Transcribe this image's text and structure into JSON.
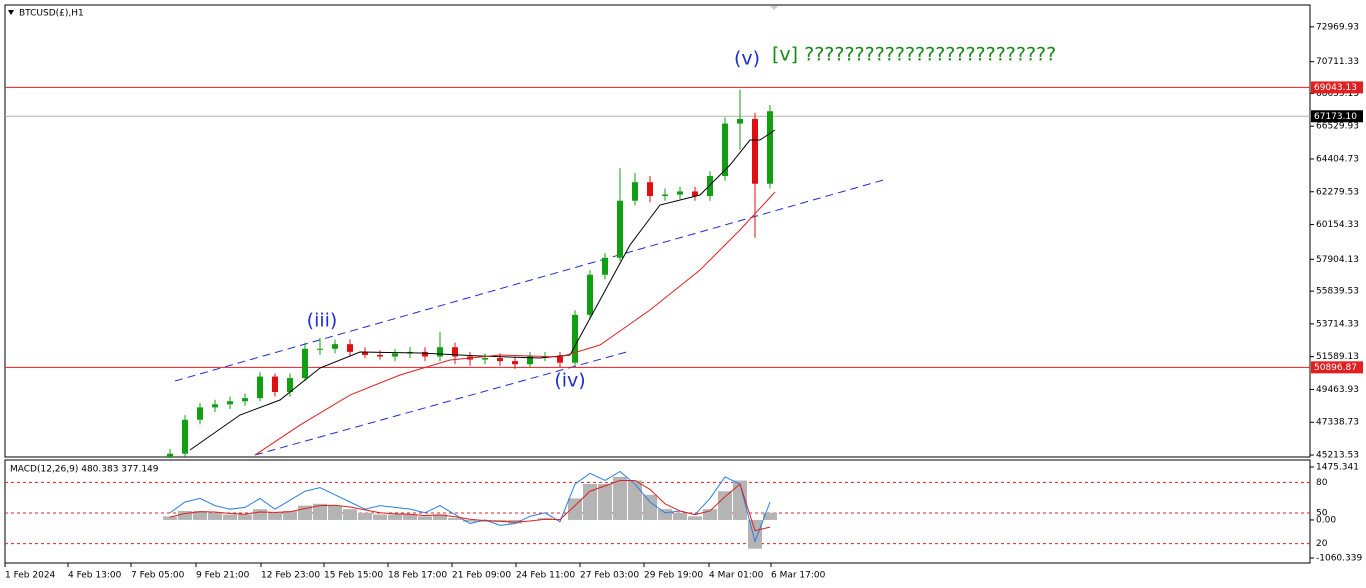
{
  "chart_data": [
    {
      "type": "candlestick",
      "title": "BTCUSD(£),H1",
      "x": [
        33,
        36,
        39,
        42,
        45,
        48,
        51,
        54,
        57,
        60,
        63,
        66,
        69,
        72,
        75,
        78,
        81,
        84,
        87,
        90,
        93,
        96,
        99,
        102,
        105,
        108,
        111,
        114,
        117,
        120,
        123,
        126,
        129,
        132,
        135,
        138,
        141,
        144,
        147,
        150,
        153
      ],
      "open": [
        45000,
        45300,
        47500,
        48300,
        48500,
        48700,
        48900,
        50300,
        49300,
        50200,
        52100,
        52100,
        52400,
        51900,
        51700,
        51600,
        51800,
        51900,
        51600,
        52200,
        51600,
        51400,
        51500,
        51300,
        51100,
        51600,
        51600,
        51200,
        54300,
        56900,
        58000,
        61700,
        62900,
        62000,
        62100,
        62300,
        62000,
        63300,
        66700,
        67000,
        62800
      ],
      "high": [
        45600,
        47800,
        48600,
        48800,
        49000,
        49200,
        50600,
        50500,
        50500,
        52500,
        52800,
        52700,
        52700,
        52200,
        52000,
        52100,
        52200,
        52200,
        53200,
        52500,
        51900,
        51800,
        51800,
        51600,
        51900,
        51900,
        51900,
        54600,
        57200,
        58300,
        63800,
        63500,
        63300,
        62500,
        62600,
        62600,
        63600,
        67100,
        68900,
        67400,
        67900
      ],
      "low": [
        44900,
        45100,
        47200,
        48000,
        48200,
        48400,
        48700,
        49000,
        49000,
        50000,
        51700,
        51800,
        51600,
        51500,
        51400,
        51300,
        51500,
        51300,
        51300,
        51100,
        51000,
        51100,
        51000,
        50800,
        50900,
        51300,
        50900,
        51000,
        54000,
        56600,
        57800,
        61400,
        61600,
        61700,
        61800,
        61700,
        61700,
        63000,
        65000,
        59300,
        62500
      ],
      "close": [
        45300,
        47500,
        48300,
        48500,
        48700,
        48900,
        50300,
        49300,
        50200,
        52100,
        52100,
        52400,
        51900,
        51700,
        51600,
        51800,
        51900,
        51600,
        52200,
        51600,
        51400,
        51500,
        51300,
        51100,
        51600,
        51600,
        51200,
        54300,
        56900,
        58000,
        61700,
        62900,
        62000,
        62100,
        62300,
        62000,
        63300,
        66700,
        67000,
        62800,
        67500
      ],
      "up_color": "#11a011",
      "down_color": "#e01010",
      "moving_averages": [
        {
          "color": "#000000",
          "x": [
            37,
            47,
            55,
            63,
            71,
            83,
            95,
            107,
            113,
            119,
            125,
            131,
            139,
            145,
            149,
            151,
            154
          ],
          "values": [
            45540,
            47806,
            48780,
            50853,
            51890,
            51825,
            51630,
            51500,
            51696,
            55262,
            58828,
            61421,
            62069,
            64014,
            65635,
            65635,
            66283
          ]
        },
        {
          "color": "#e02020",
          "x": [
            50,
            59,
            69,
            79,
            89,
            99,
            111,
            119,
            129,
            139,
            147,
            154
          ],
          "values": [
            45213,
            47158,
            49103,
            50400,
            51372,
            51696,
            51566,
            52344,
            54613,
            57206,
            59800,
            62264
          ]
        }
      ],
      "hlines": [
        {
          "value": 69043.13,
          "color": "#e02020"
        },
        {
          "value": 67173.1,
          "label": "67173.10",
          "color": "#000000"
        },
        {
          "value": 50896.87,
          "color": "#e02020"
        }
      ],
      "annotations": [
        "(iii)",
        "(iv)",
        "(v)",
        "[v] ?????????????????????????"
      ],
      "xlim": [
        0,
        261
      ],
      "ylim": [
        45085,
        74387
      ],
      "yticks": [
        72969.93,
        70711.33,
        68655.13,
        66529.93,
        64404.73,
        62279.53,
        60154.33,
        57904.13,
        55839.53,
        53714.33,
        51589.13,
        49463.93,
        47338.73,
        45213.53
      ],
      "xticks": [
        {
          "value": 0,
          "label": "1 Feb 2024"
        },
        {
          "value": 12.6,
          "label": "4 Feb 13:00"
        },
        {
          "value": 25.2,
          "label": "7 Feb 05:00"
        },
        {
          "value": 38.2,
          "label": "9 Feb 21:00"
        },
        {
          "value": 51.2,
          "label": "12 Feb 23:00"
        },
        {
          "value": 63.8,
          "label": "15 Feb 15:00"
        },
        {
          "value": 76.6,
          "label": "18 Feb 17:00"
        },
        {
          "value": 89.4,
          "label": "21 Feb 09:00"
        },
        {
          "value": 102.2,
          "label": "24 Feb 11:00"
        },
        {
          "value": 115,
          "label": "27 Feb 03:00"
        },
        {
          "value": 127.8,
          "label": "29 Feb 19:00"
        },
        {
          "value": 140.8,
          "label": "4 Mar 01:00"
        },
        {
          "value": 153.2,
          "label": "6 Mar 17:00"
        }
      ]
    },
    {
      "type": "macd",
      "title": "MACD(12,26,9) 480.383 377.149",
      "histogram": [
        100,
        250,
        250,
        200,
        150,
        150,
        300,
        200,
        250,
        400,
        450,
        400,
        300,
        200,
        150,
        150,
        150,
        100,
        150,
        50,
        -50,
        -50,
        -50,
        -100,
        0,
        50,
        0,
        600,
        1000,
        1000,
        1200,
        1100,
        700,
        300,
        200,
        100,
        300,
        800,
        1100,
        -800,
        200
      ],
      "signal": [
        80,
        180,
        230,
        220,
        180,
        160,
        220,
        210,
        230,
        320,
        400,
        410,
        360,
        280,
        200,
        170,
        160,
        120,
        140,
        90,
        20,
        -20,
        -40,
        -60,
        -30,
        20,
        10,
        400,
        800,
        950,
        1100,
        1100,
        850,
        450,
        250,
        150,
        250,
        650,
        1000,
        -300,
        -200
      ],
      "line": [
        200,
        500,
        600,
        400,
        300,
        350,
        600,
        300,
        550,
        800,
        900,
        700,
        500,
        300,
        400,
        350,
        300,
        200,
        400,
        150,
        -100,
        0,
        -150,
        -100,
        100,
        200,
        -50,
        1000,
        1300,
        1100,
        1350,
        1000,
        500,
        200,
        250,
        150,
        600,
        1200,
        1000,
        -600,
        500
      ],
      "histogram_color": "#b4b4b4",
      "signal_color": "#e02020",
      "line_color": "#2a7fe0",
      "ylim": [
        -1060.339,
        1475.341
      ],
      "yticks": [
        1475.341,
        {
          "value": 0,
          "label": "0.00"
        },
        -1060.339
      ],
      "levels": [
        80,
        50,
        20
      ],
      "levels_lim": [
        0,
        100
      ],
      "level_color": "#e02020"
    }
  ]
}
